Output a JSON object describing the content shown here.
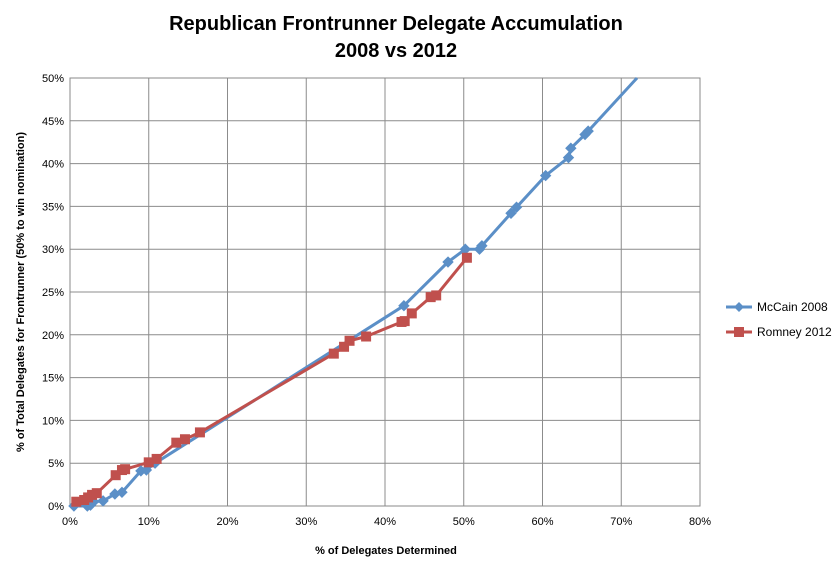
{
  "chart_data": {
    "type": "line",
    "title": [
      "Republican Frontrunner Delegate Accumulation",
      "2008 vs 2012"
    ],
    "xlabel": "% of Delegates Determined",
    "ylabel": "% of Total Delegates for Frontrunner (50% to win nomination)",
    "xlim": [
      0,
      80
    ],
    "ylim": [
      0,
      50
    ],
    "x_ticks": [
      0,
      10,
      20,
      30,
      40,
      50,
      60,
      70,
      80
    ],
    "y_ticks": [
      0,
      5,
      10,
      15,
      20,
      25,
      30,
      35,
      40,
      45,
      50
    ],
    "x_tick_labels": [
      "0%",
      "10%",
      "20%",
      "30%",
      "40%",
      "50%",
      "60%",
      "70%",
      "80%"
    ],
    "y_tick_labels": [
      "0%",
      "5%",
      "10%",
      "15%",
      "20%",
      "25%",
      "30%",
      "35%",
      "40%",
      "45%",
      "50%"
    ],
    "grid": {
      "x": true,
      "y": true
    },
    "legend_position": "right",
    "series": [
      {
        "name": "McCain 2008",
        "color": "#5b8fc7",
        "marker": "diamond",
        "points": [
          [
            0.5,
            0.0
          ],
          [
            2.2,
            0.0
          ],
          [
            2.6,
            0.1
          ],
          [
            3.0,
            0.5
          ],
          [
            4.2,
            0.6
          ],
          [
            5.7,
            1.4
          ],
          [
            6.6,
            1.6
          ],
          [
            9.0,
            4.1
          ],
          [
            9.7,
            4.2
          ],
          [
            10.8,
            5.0
          ],
          [
            42.4,
            23.4
          ],
          [
            48.0,
            28.5
          ],
          [
            50.2,
            30.0
          ],
          [
            52.0,
            30.0
          ],
          [
            52.3,
            30.4
          ],
          [
            56.0,
            34.2
          ],
          [
            56.7,
            34.9
          ],
          [
            60.4,
            38.6
          ],
          [
            63.3,
            40.7
          ],
          [
            63.6,
            41.8
          ],
          [
            65.4,
            43.4
          ],
          [
            65.8,
            43.8
          ],
          [
            72.0,
            50.0
          ]
        ],
        "markers_until": 65.8
      },
      {
        "name": "Romney 2012",
        "color": "#c0504d",
        "marker": "square",
        "points": [
          [
            0.8,
            0.5
          ],
          [
            1.8,
            0.7
          ],
          [
            2.3,
            1.0
          ],
          [
            2.8,
            1.3
          ],
          [
            3.4,
            1.5
          ],
          [
            5.8,
            3.6
          ],
          [
            6.6,
            4.2
          ],
          [
            7.0,
            4.3
          ],
          [
            10.0,
            5.1
          ],
          [
            11.0,
            5.5
          ],
          [
            13.5,
            7.4
          ],
          [
            14.6,
            7.8
          ],
          [
            16.5,
            8.6
          ],
          [
            33.5,
            17.8
          ],
          [
            34.8,
            18.6
          ],
          [
            35.5,
            19.3
          ],
          [
            37.6,
            19.8
          ],
          [
            42.1,
            21.5
          ],
          [
            42.5,
            21.6
          ],
          [
            43.4,
            22.5
          ],
          [
            45.8,
            24.4
          ],
          [
            46.5,
            24.6
          ],
          [
            50.4,
            29.0
          ]
        ]
      }
    ]
  }
}
